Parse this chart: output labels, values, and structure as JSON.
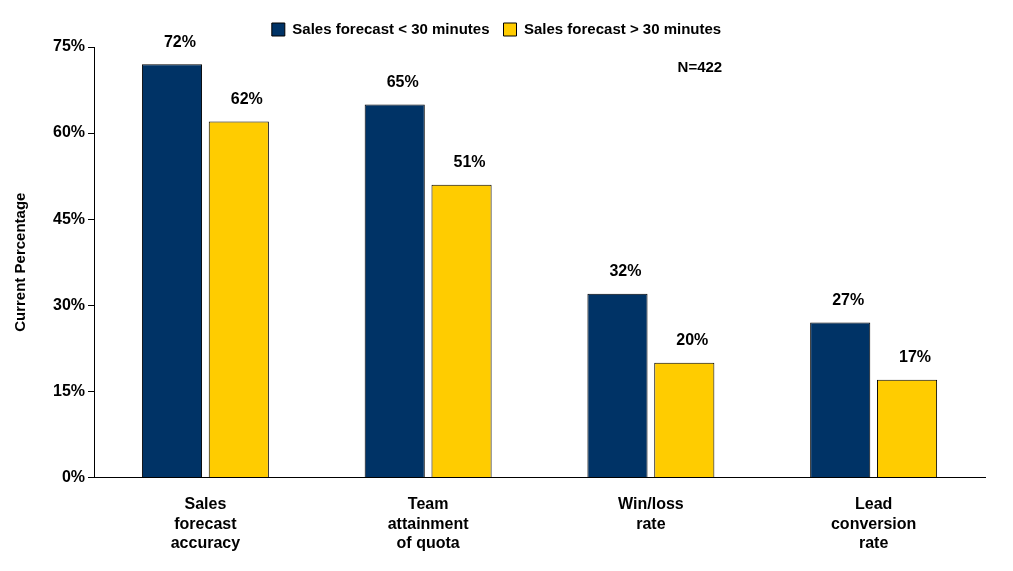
{
  "chart_data": {
    "type": "bar",
    "ylabel": "Current Percentage",
    "categories": [
      "Sales forecast accuracy",
      "Team attainment of quota",
      "Win/loss rate",
      "Lead conversion rate"
    ],
    "series": [
      {
        "name": "Sales forecast < 30 minutes",
        "color": "#003366",
        "values": [
          72,
          65,
          32,
          27
        ],
        "value_labels": [
          "72%",
          "65%",
          "32%",
          "27%"
        ]
      },
      {
        "name": "Sales forecast > 30 minutes",
        "color": "#ffcc00",
        "values": [
          62,
          51,
          20,
          17
        ],
        "value_labels": [
          "62%",
          "51%",
          "20%",
          "17%"
        ]
      }
    ],
    "ylim": [
      0,
      75
    ],
    "yticks": [
      {
        "value": 0,
        "label": "0%"
      },
      {
        "value": 15,
        "label": "15%"
      },
      {
        "value": 30,
        "label": "30%"
      },
      {
        "value": 45,
        "label": "45%"
      },
      {
        "value": 60,
        "label": "60%"
      },
      {
        "value": 75,
        "label": "75%"
      }
    ],
    "annotations": [
      "N=422"
    ],
    "grid": false,
    "legend": "top"
  }
}
